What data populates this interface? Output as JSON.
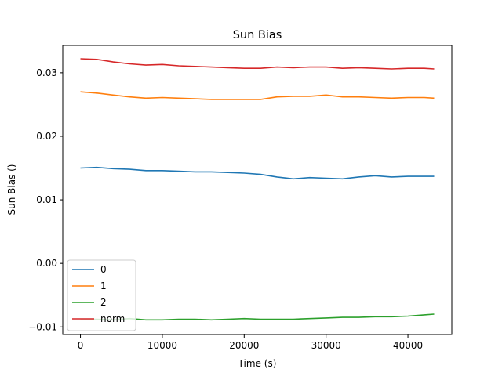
{
  "chart_data": {
    "type": "line",
    "title": "Sun Bias",
    "xlabel": "Time (s)",
    "ylabel": "Sun Bias ()",
    "xlim": [
      -2160,
      45360
    ],
    "ylim": [
      -0.0112,
      0.0343
    ],
    "xticks": [
      0,
      10000,
      20000,
      30000,
      40000
    ],
    "xtick_labels": [
      "0",
      "10000",
      "20000",
      "30000",
      "40000"
    ],
    "yticks": [
      -0.01,
      0.0,
      0.01,
      0.02,
      0.03
    ],
    "ytick_labels": [
      "−0.01",
      "0.00",
      "0.01",
      "0.02",
      "0.03"
    ],
    "grid": false,
    "legend_position": "lower-left",
    "x": [
      0,
      2000,
      4000,
      6000,
      8000,
      10000,
      12000,
      14000,
      16000,
      18000,
      20000,
      22000,
      24000,
      26000,
      28000,
      30000,
      32000,
      34000,
      36000,
      38000,
      40000,
      42000,
      43200
    ],
    "series": [
      {
        "name": "0",
        "color": "#1f77b4",
        "values": [
          0.015,
          0.0151,
          0.0149,
          0.0148,
          0.0146,
          0.0146,
          0.0145,
          0.0144,
          0.0144,
          0.0143,
          0.0142,
          0.014,
          0.0136,
          0.0133,
          0.0135,
          0.0134,
          0.0133,
          0.0136,
          0.0138,
          0.0136,
          0.0137,
          0.0137,
          0.0137
        ]
      },
      {
        "name": "1",
        "color": "#ff7f0e",
        "values": [
          0.027,
          0.0268,
          0.0265,
          0.0262,
          0.026,
          0.0261,
          0.026,
          0.0259,
          0.0258,
          0.0258,
          0.0258,
          0.0258,
          0.0262,
          0.0263,
          0.0263,
          0.0265,
          0.0262,
          0.0262,
          0.0261,
          0.026,
          0.0261,
          0.0261,
          0.026
        ]
      },
      {
        "name": "2",
        "color": "#2ca02c",
        "values": [
          -0.0088,
          -0.0088,
          -0.0089,
          -0.0087,
          -0.0089,
          -0.0089,
          -0.0088,
          -0.0088,
          -0.0089,
          -0.0088,
          -0.0087,
          -0.0088,
          -0.0088,
          -0.0088,
          -0.0087,
          -0.0086,
          -0.0085,
          -0.0085,
          -0.0084,
          -0.0084,
          -0.0083,
          -0.0081,
          -0.008
        ]
      },
      {
        "name": "norm",
        "color": "#d62728",
        "values": [
          0.0322,
          0.0321,
          0.0317,
          0.0314,
          0.0312,
          0.0313,
          0.0311,
          0.031,
          0.0309,
          0.0308,
          0.0307,
          0.0307,
          0.0309,
          0.0308,
          0.0309,
          0.0309,
          0.0307,
          0.0308,
          0.0307,
          0.0306,
          0.0307,
          0.0307,
          0.0306
        ]
      }
    ]
  }
}
